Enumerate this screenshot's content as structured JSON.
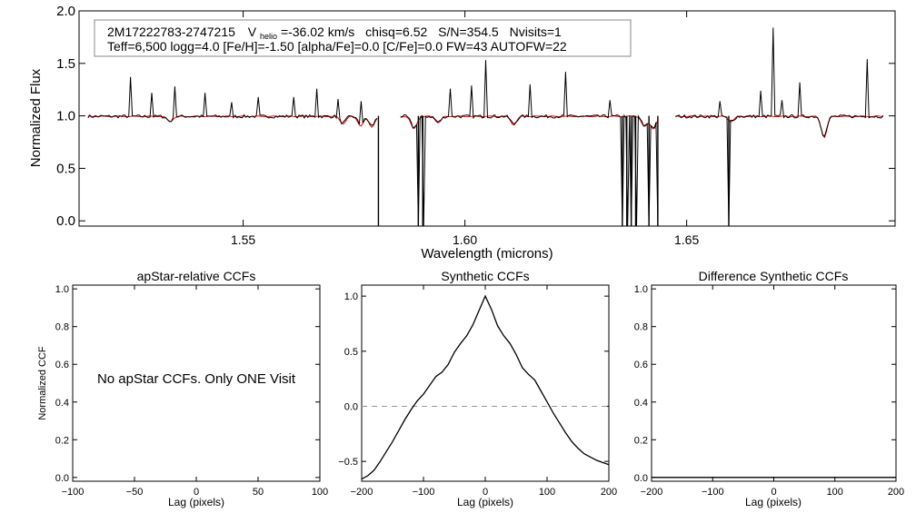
{
  "chart_data": [
    {
      "type": "line",
      "panel": "spectrum",
      "info_box": {
        "object": "2M17222783-2747215",
        "vhelio_prefix": "V",
        "vhelio_sub": "helio",
        "vhelio_value": "=-36.02 km/s",
        "chisq": "chisq=6.52",
        "snr": "S/N=354.5",
        "nvisits": "Nvisits=1",
        "line2": "Teff=6,500 logg=4.0 [Fe/H]=-1.50 [alpha/Fe]=0.0 [C/Fe]=0.0 FW=43 AUTOFW=22"
      },
      "xlabel": "Wavelength (microns)",
      "ylabel": "Normalized Flux",
      "xlim": [
        1.513,
        1.697
      ],
      "ylim": [
        -0.05,
        2.0
      ],
      "xticks": [
        {
          "v": 1.55,
          "label": "1.55"
        },
        {
          "v": 1.6,
          "label": "1.60"
        },
        {
          "v": 1.65,
          "label": "1.65"
        }
      ],
      "yticks": [
        {
          "v": 0.0,
          "label": "0.0"
        },
        {
          "v": 0.5,
          "label": "0.5"
        },
        {
          "v": 1.0,
          "label": "1.0"
        },
        {
          "v": 1.5,
          "label": "1.5"
        },
        {
          "v": 2.0,
          "label": "2.0"
        }
      ],
      "series": [
        {
          "role": "observed",
          "color": "#000000",
          "chips": [
            [
              1.515,
              1.5805
            ],
            [
              1.5855,
              1.6435
            ],
            [
              1.6475,
              1.6945
            ]
          ],
          "spikes": [
            [
              1.5245,
              1.37
            ],
            [
              1.5295,
              1.22
            ],
            [
              1.5345,
              1.28
            ],
            [
              1.5415,
              1.22
            ],
            [
              1.5475,
              1.13
            ],
            [
              1.5535,
              1.18
            ],
            [
              1.5615,
              1.18
            ],
            [
              1.5665,
              1.26
            ],
            [
              1.5715,
              1.16
            ],
            [
              1.5765,
              1.14
            ],
            [
              1.5965,
              1.26
            ],
            [
              1.6015,
              1.29
            ],
            [
              1.6045,
              1.53
            ],
            [
              1.6145,
              1.3
            ],
            [
              1.6225,
              1.42
            ],
            [
              1.6325,
              1.15
            ],
            [
              1.6375,
              1.18
            ],
            [
              1.6415,
              1.25
            ],
            [
              1.6575,
              1.14
            ],
            [
              1.6665,
              1.24
            ],
            [
              1.6695,
              1.84
            ],
            [
              1.6715,
              1.15
            ],
            [
              1.6755,
              1.32
            ],
            [
              1.6905,
              1.54
            ]
          ],
          "dips": [
            [
              1.5805,
              -0.05
            ],
            [
              1.5895,
              -0.05
            ],
            [
              1.5905,
              -0.05
            ],
            [
              1.6355,
              -0.05
            ],
            [
              1.6365,
              -0.05
            ],
            [
              1.6375,
              -0.05
            ],
            [
              1.6385,
              -0.05
            ],
            [
              1.6415,
              -0.05
            ],
            [
              1.6435,
              -0.05
            ],
            [
              1.6595,
              -0.05
            ]
          ]
        },
        {
          "role": "synthetic",
          "color": "#ff0000",
          "chips": [
            [
              1.515,
              1.5805
            ],
            [
              1.5855,
              1.6435
            ],
            [
              1.6475,
              1.6945
            ]
          ],
          "absorptions": [
            [
              1.5335,
              0.05
            ],
            [
              1.5725,
              0.07
            ],
            [
              1.5765,
              0.09
            ],
            [
              1.579,
              0.1
            ],
            [
              1.5885,
              0.12
            ],
            [
              1.594,
              0.06
            ],
            [
              1.611,
              0.08
            ],
            [
              1.6405,
              0.1
            ],
            [
              1.6425,
              0.12
            ],
            [
              1.66,
              0.05
            ],
            [
              1.681,
              0.2
            ]
          ]
        }
      ]
    },
    {
      "type": "line",
      "panel": "apstar",
      "title": "apStar-relative CCFs",
      "xlabel": "Lag (pixels)",
      "ylabel": "Normalized CCF",
      "xlim": [
        -100,
        100
      ],
      "ylim": [
        -0.02,
        1.02
      ],
      "xticks": [
        {
          "v": -100,
          "label": "−100"
        },
        {
          "v": -50,
          "label": "−50"
        },
        {
          "v": 0,
          "label": "0"
        },
        {
          "v": 50,
          "label": "50"
        },
        {
          "v": 100,
          "label": "100"
        }
      ],
      "yticks": [
        {
          "v": 0.0,
          "label": "0.0"
        },
        {
          "v": 0.2,
          "label": "0.2"
        },
        {
          "v": 0.4,
          "label": "0.4"
        },
        {
          "v": 0.6,
          "label": "0.6"
        },
        {
          "v": 0.8,
          "label": "0.8"
        },
        {
          "v": 1.0,
          "label": "1.0"
        }
      ],
      "annotation": "No apStar CCFs.  Only ONE Visit"
    },
    {
      "type": "line",
      "panel": "synthetic",
      "title": "Synthetic CCFs",
      "xlabel": "Lag (pixels)",
      "xlim": [
        -200,
        200
      ],
      "ylim": [
        -0.68,
        1.1
      ],
      "xticks": [
        {
          "v": -200,
          "label": "−200"
        },
        {
          "v": -100,
          "label": "−100"
        },
        {
          "v": 0,
          "label": "0"
        },
        {
          "v": 100,
          "label": "100"
        },
        {
          "v": 200,
          "label": "200"
        }
      ],
      "yticks": [
        {
          "v": -0.5,
          "label": "−0.5"
        },
        {
          "v": 0.0,
          "label": "0.0"
        },
        {
          "v": 0.5,
          "label": "0.5"
        },
        {
          "v": 1.0,
          "label": "1.0"
        }
      ],
      "reference_line": {
        "y": 0.0,
        "style": "dashed",
        "color": "#999999"
      },
      "series": [
        {
          "color": "#000000",
          "x": [
            -200,
            -190,
            -180,
            -170,
            -160,
            -150,
            -140,
            -130,
            -120,
            -110,
            -100,
            -90,
            -80,
            -70,
            -60,
            -50,
            -40,
            -30,
            -20,
            -10,
            0,
            10,
            20,
            30,
            40,
            50,
            60,
            70,
            80,
            90,
            100,
            110,
            120,
            130,
            140,
            150,
            160,
            170,
            180,
            190,
            200
          ],
          "y": [
            -0.66,
            -0.63,
            -0.58,
            -0.5,
            -0.41,
            -0.32,
            -0.22,
            -0.12,
            -0.03,
            0.05,
            0.11,
            0.19,
            0.27,
            0.31,
            0.38,
            0.49,
            0.57,
            0.64,
            0.74,
            0.87,
            1.0,
            0.88,
            0.73,
            0.64,
            0.57,
            0.47,
            0.35,
            0.29,
            0.24,
            0.14,
            0.04,
            -0.06,
            -0.15,
            -0.24,
            -0.32,
            -0.38,
            -0.43,
            -0.46,
            -0.49,
            -0.51,
            -0.53
          ]
        }
      ]
    },
    {
      "type": "line",
      "panel": "difference",
      "title": "Difference Synthetic CCFs",
      "xlabel": "Lag (pixels)",
      "xlim": [
        -200,
        200
      ],
      "ylim": [
        -0.02,
        1.02
      ],
      "xticks": [
        {
          "v": -200,
          "label": "−200"
        },
        {
          "v": -100,
          "label": "−100"
        },
        {
          "v": 0,
          "label": "0"
        },
        {
          "v": 100,
          "label": "100"
        },
        {
          "v": 200,
          "label": "200"
        }
      ],
      "yticks": [
        {
          "v": 0.0,
          "label": "0.0"
        },
        {
          "v": 0.2,
          "label": "0.2"
        },
        {
          "v": 0.4,
          "label": "0.4"
        },
        {
          "v": 0.6,
          "label": "0.6"
        },
        {
          "v": 0.8,
          "label": "0.8"
        },
        {
          "v": 1.0,
          "label": "1.0"
        }
      ],
      "series": [
        {
          "color": "#000000",
          "x": [
            -200,
            200
          ],
          "y": [
            0.0,
            0.0
          ]
        }
      ]
    }
  ]
}
